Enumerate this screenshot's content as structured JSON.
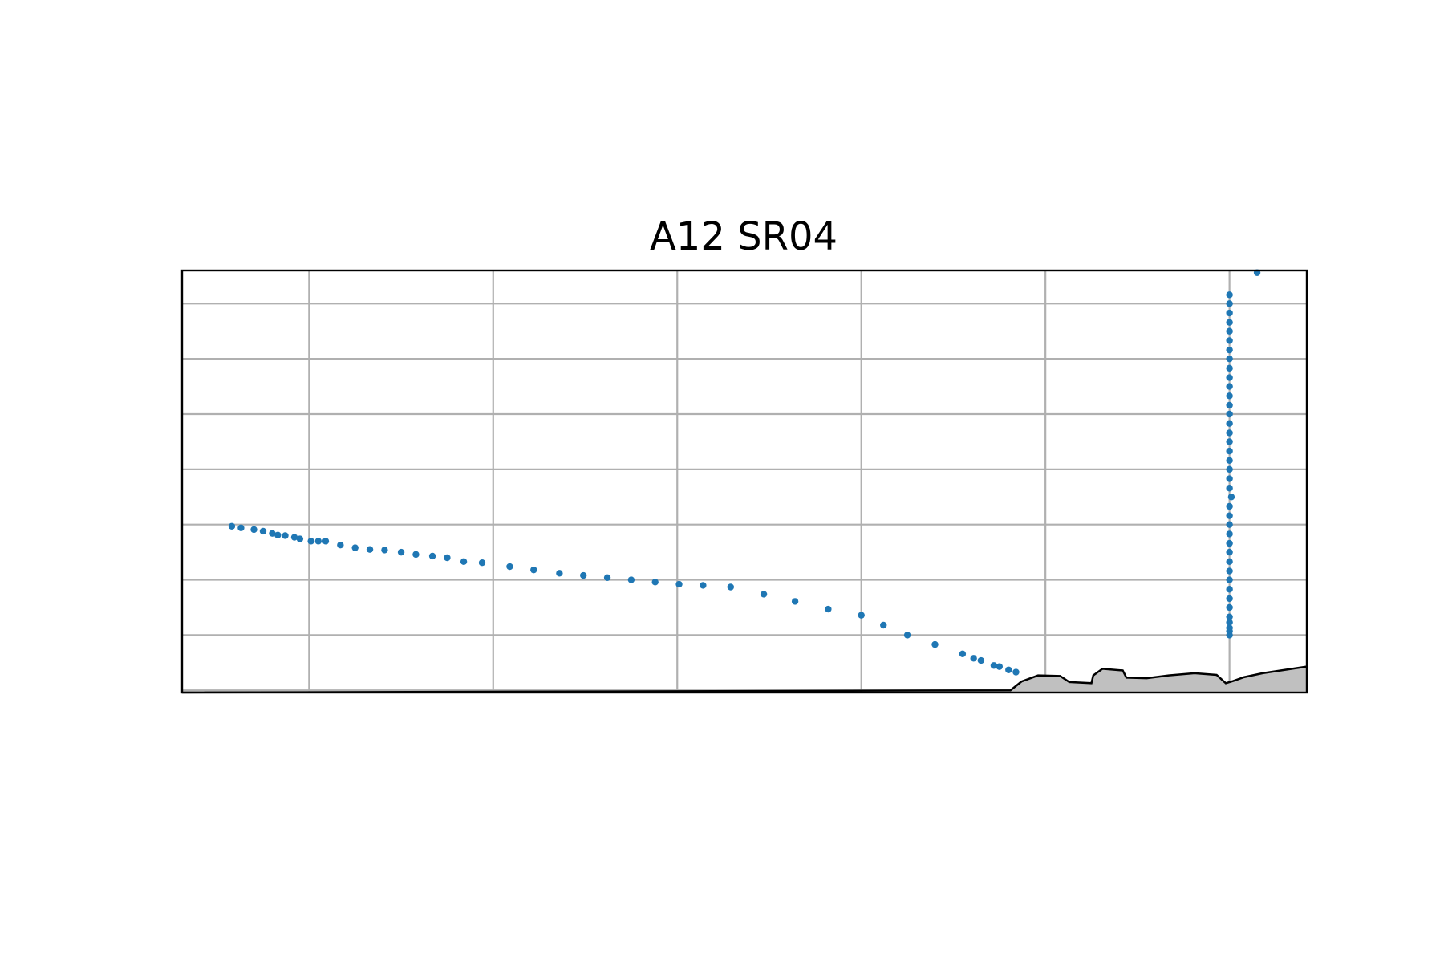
{
  "chart_data": {
    "type": "scatter",
    "title": "A12 SR04",
    "xlabel": "",
    "ylabel": "",
    "xlim": [
      -0.69,
      5.42
    ],
    "ylim": [
      -0.04,
      7.6
    ],
    "grid": true,
    "x_gridlines": [
      0,
      1,
      2,
      3,
      4,
      5
    ],
    "y_gridlines": [
      0,
      1,
      2,
      3,
      4,
      5,
      6,
      7
    ],
    "colors": {
      "points": "#1f77b4",
      "terrain_fill": "#c0c0c0",
      "terrain_edge": "#000000",
      "grid": "#b0b0b0"
    },
    "series": [
      {
        "type": "scatter",
        "x": [
          -0.42,
          -0.37,
          -0.3,
          -0.25,
          -0.2,
          -0.17,
          -0.13,
          -0.08,
          -0.05,
          0.01,
          0.05,
          0.09,
          0.17,
          0.25,
          0.33,
          0.41,
          0.5,
          0.58,
          0.67,
          0.75,
          0.84,
          0.94,
          1.09,
          1.22,
          1.36,
          1.49,
          1.62,
          1.75,
          1.88,
          2.01,
          2.14,
          2.29,
          2.47,
          2.64,
          2.82,
          3.0,
          3.12,
          3.25,
          3.4,
          3.55,
          3.61,
          3.65,
          3.72,
          3.75,
          3.8,
          3.84
        ],
        "y": [
          2.97,
          2.94,
          2.91,
          2.88,
          2.84,
          2.81,
          2.8,
          2.77,
          2.74,
          2.7,
          2.7,
          2.7,
          2.63,
          2.58,
          2.55,
          2.54,
          2.5,
          2.46,
          2.43,
          2.4,
          2.33,
          2.31,
          2.24,
          2.18,
          2.12,
          2.08,
          2.04,
          2.0,
          1.96,
          1.92,
          1.9,
          1.87,
          1.74,
          1.61,
          1.47,
          1.36,
          1.18,
          1.0,
          0.83,
          0.66,
          0.58,
          0.54,
          0.45,
          0.43,
          0.37,
          0.33
        ]
      },
      {
        "type": "scatter",
        "x": [
          5.0,
          5.0,
          5.0,
          5.0,
          5.0,
          5.0,
          5.0,
          5.0,
          5.0,
          5.0,
          5.0,
          5.0,
          5.0,
          5.0,
          5.0,
          5.0,
          5.0,
          5.01,
          5.0,
          5.0,
          5.0,
          5.0,
          5.0,
          5.0,
          5.0,
          5.0,
          5.0,
          5.0,
          5.0,
          5.0,
          5.0,
          5.0,
          5.0,
          5.0,
          5.0,
          5.0,
          5.0,
          5.0,
          5.0,
          5.0,
          5.15
        ],
        "y": [
          1.0,
          1.07,
          1.13,
          1.23,
          1.33,
          1.5,
          1.66,
          1.83,
          2.0,
          2.16,
          2.33,
          2.5,
          2.66,
          2.83,
          3.0,
          3.16,
          3.33,
          3.5,
          3.66,
          3.83,
          4.0,
          4.16,
          4.33,
          4.5,
          4.66,
          4.83,
          5.0,
          5.16,
          5.33,
          5.5,
          5.66,
          5.83,
          6.0,
          6.16,
          6.33,
          6.5,
          6.66,
          6.83,
          7.0,
          7.16,
          7.56
        ]
      },
      {
        "type": "area",
        "x": [
          3.81,
          3.87,
          3.96,
          4.08,
          4.13,
          4.25,
          4.26,
          4.31,
          4.42,
          4.44,
          4.55,
          4.67,
          4.81,
          4.93,
          4.98,
          5.02,
          5.08,
          5.18,
          5.42
        ],
        "y": [
          0.0,
          0.16,
          0.27,
          0.26,
          0.15,
          0.13,
          0.27,
          0.39,
          0.36,
          0.23,
          0.22,
          0.27,
          0.31,
          0.28,
          0.13,
          0.17,
          0.24,
          0.31,
          0.43
        ]
      }
    ]
  }
}
